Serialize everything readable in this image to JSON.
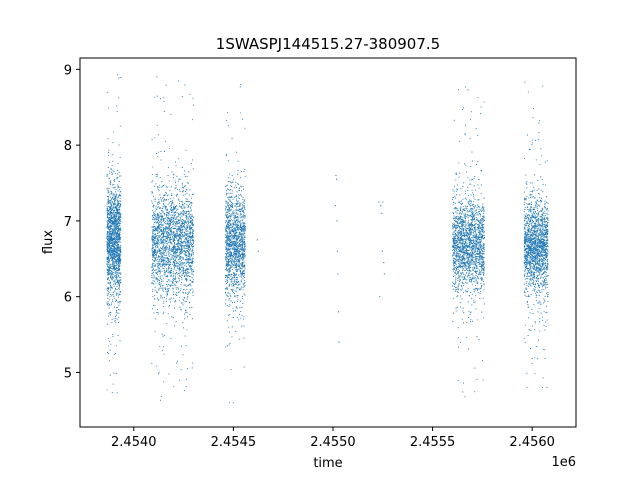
{
  "chart_data": {
    "type": "scatter",
    "title": "1SWASPJ144515.27-380907.5",
    "xlabel": "time",
    "ylabel": "flux",
    "x_offset_label": "1e6",
    "xlim": [
      2453730,
      2456220
    ],
    "ylim": [
      4.28,
      9.15
    ],
    "x_ticks": [
      2454000,
      2454500,
      2455000,
      2455500,
      2456000
    ],
    "x_tick_labels": [
      "2.4540",
      "2.4545",
      "2.4550",
      "2.4555",
      "2.4560"
    ],
    "y_ticks": [
      5,
      6,
      7,
      8,
      9
    ],
    "y_tick_labels": [
      "5",
      "6",
      "7",
      "8",
      "9"
    ],
    "grid": false,
    "marker_color": "#1f77b4",
    "series": [
      {
        "clusters": [
          {
            "x_range": [
              2453865,
              2453935
            ],
            "center": 6.75,
            "spread": 0.35,
            "min": 4.55,
            "max": 8.95,
            "n": 1600
          },
          {
            "x_range": [
              2454090,
              2454300
            ],
            "center": 6.7,
            "spread": 0.35,
            "min": 4.5,
            "max": 8.9,
            "n": 2200
          },
          {
            "x_range": [
              2454460,
              2454560
            ],
            "center": 6.7,
            "spread": 0.35,
            "min": 4.6,
            "max": 8.8,
            "n": 1400
          },
          {
            "x_range": [
              2455600,
              2455760
            ],
            "center": 6.7,
            "spread": 0.3,
            "min": 4.55,
            "max": 8.8,
            "n": 1800
          },
          {
            "x_range": [
              2455960,
              2456080
            ],
            "center": 6.65,
            "spread": 0.3,
            "min": 4.65,
            "max": 8.85,
            "n": 1700
          }
        ],
        "sparse_points": [
          {
            "x": 2454620,
            "y": 6.75
          },
          {
            "x": 2454625,
            "y": 6.6
          },
          {
            "x": 2455015,
            "y": 7.6
          },
          {
            "x": 2455018,
            "y": 7.55
          },
          {
            "x": 2455020,
            "y": 7.0
          },
          {
            "x": 2455022,
            "y": 6.6
          },
          {
            "x": 2455025,
            "y": 6.3
          },
          {
            "x": 2455028,
            "y": 5.8
          },
          {
            "x": 2455030,
            "y": 5.4
          },
          {
            "x": 2455012,
            "y": 7.2
          },
          {
            "x": 2455230,
            "y": 7.25
          },
          {
            "x": 2455240,
            "y": 7.2
          },
          {
            "x": 2455245,
            "y": 7.1
          },
          {
            "x": 2455250,
            "y": 7.25
          },
          {
            "x": 2455255,
            "y": 6.45
          },
          {
            "x": 2455258,
            "y": 6.3
          },
          {
            "x": 2455235,
            "y": 6.0
          },
          {
            "x": 2455248,
            "y": 6.6
          }
        ]
      }
    ]
  }
}
